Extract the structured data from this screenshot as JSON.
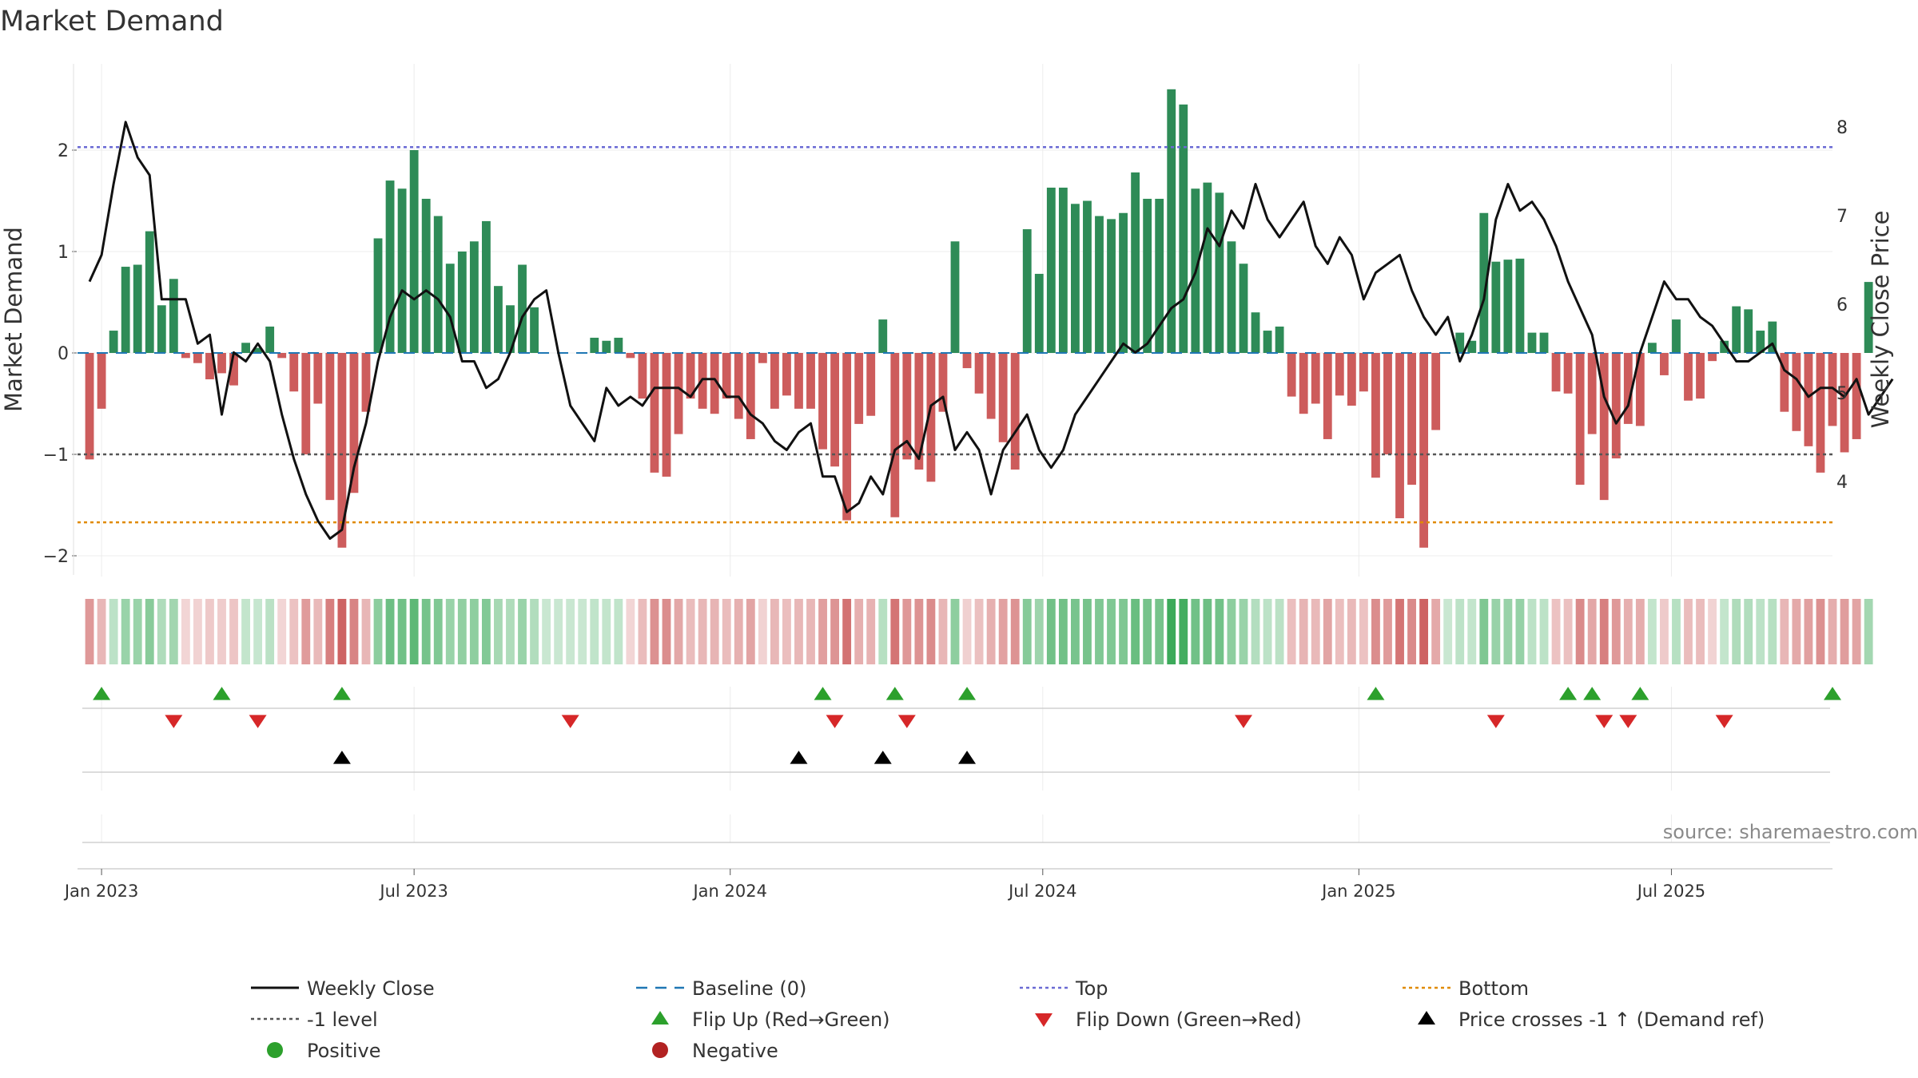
{
  "chart_data": {
    "type": "bar",
    "title": "Market Demand",
    "ylabel": "Market Demand",
    "y2label": "Weekly Close Price",
    "ylim": [
      -2.2,
      2.75
    ],
    "y2lim": [
      3.2,
      8.7
    ],
    "yticks": [
      "−2",
      "−1",
      "0",
      "1",
      "2"
    ],
    "yticks_values": [
      -2,
      -1,
      0,
      1,
      2
    ],
    "y2ticks": [
      "4",
      "5",
      "6",
      "7",
      "8"
    ],
    "y2ticks_values": [
      4,
      5,
      6,
      7,
      8
    ],
    "x_start_week": -1,
    "x_end_week": 145,
    "xticks": [
      {
        "label": "Jan 2023",
        "week": 1
      },
      {
        "label": "Jul 2023",
        "week": 27
      },
      {
        "label": "Jan 2024",
        "week": 53.3
      },
      {
        "label": "Jul 2024",
        "week": 79.3
      },
      {
        "label": "Jan 2025",
        "week": 105.6
      },
      {
        "label": "Jul 2025",
        "week": 131.6
      }
    ],
    "reference_lines": {
      "top": 2.03,
      "minus_one": -1.0,
      "bottom": -1.67,
      "baseline": 0
    },
    "demand": [
      -1.05,
      -0.55,
      0.22,
      0.85,
      0.87,
      1.2,
      0.47,
      0.73,
      -0.05,
      -0.1,
      -0.26,
      -0.2,
      -0.32,
      0.1,
      0.05,
      0.26,
      -0.05,
      -0.38,
      -1.0,
      -0.5,
      -1.45,
      -1.92,
      -1.38,
      -0.58,
      1.13,
      1.7,
      1.62,
      2.0,
      1.52,
      1.35,
      0.88,
      1.0,
      1.1,
      1.3,
      0.66,
      0.47,
      0.87,
      0.45,
      0.0,
      0.0,
      0.0,
      0.0,
      0.15,
      0.12,
      0.15,
      -0.05,
      -0.45,
      -1.18,
      -1.22,
      -0.8,
      -0.45,
      -0.55,
      -0.6,
      -0.45,
      -0.65,
      -0.85,
      -0.1,
      -0.55,
      -0.42,
      -0.55,
      -0.55,
      -0.95,
      -1.12,
      -1.65,
      -0.7,
      -0.62,
      0.33,
      -1.62,
      -1.05,
      -1.15,
      -1.27,
      -0.58,
      1.1,
      -0.15,
      -0.4,
      -0.65,
      -0.88,
      -1.15,
      1.22,
      0.78,
      1.63,
      1.63,
      1.47,
      1.5,
      1.35,
      1.32,
      1.38,
      1.78,
      1.52,
      1.52,
      2.6,
      2.45,
      1.62,
      1.68,
      1.58,
      1.1,
      0.88,
      0.4,
      0.22,
      0.26,
      -0.43,
      -0.6,
      -0.5,
      -0.85,
      -0.42,
      -0.52,
      -0.38,
      -1.23,
      -1.0,
      -1.63,
      -1.3,
      -1.92,
      -0.76,
      0.0,
      0.2,
      0.12,
      1.38,
      0.9,
      0.92,
      0.93,
      0.2,
      0.2,
      -0.38,
      -0.4,
      -1.3,
      -0.8,
      -1.45,
      -1.04,
      -0.7,
      -0.72,
      0.1,
      -0.22,
      0.33,
      -0.47,
      -0.45,
      -0.08,
      0.12,
      0.46,
      0.43,
      0.22,
      0.31,
      -0.58,
      -0.77,
      -0.92,
      -1.18,
      -0.72,
      -0.98,
      -0.85,
      0.7
    ],
    "weekly_close": [
      6.4,
      6.7,
      7.5,
      8.2,
      7.8,
      7.6,
      6.2,
      6.2,
      6.2,
      5.7,
      5.8,
      4.9,
      5.6,
      5.5,
      5.7,
      5.5,
      4.9,
      4.4,
      4.0,
      3.7,
      3.5,
      3.6,
      4.3,
      4.8,
      5.5,
      6.0,
      6.3,
      6.2,
      6.3,
      6.2,
      6.0,
      5.5,
      5.5,
      5.2,
      5.3,
      5.6,
      6.0,
      6.2,
      6.3,
      5.6,
      5.0,
      4.8,
      4.6,
      5.2,
      5.0,
      5.1,
      5.0,
      5.2,
      5.2,
      5.2,
      5.1,
      5.3,
      5.3,
      5.1,
      5.1,
      4.9,
      4.8,
      4.6,
      4.5,
      4.7,
      4.8,
      4.2,
      4.2,
      3.8,
      3.9,
      4.2,
      4.0,
      4.5,
      4.6,
      4.4,
      5.0,
      5.1,
      4.5,
      4.7,
      4.5,
      4.0,
      4.5,
      4.7,
      4.9,
      4.5,
      4.3,
      4.5,
      4.9,
      5.1,
      5.3,
      5.5,
      5.7,
      5.6,
      5.7,
      5.9,
      6.1,
      6.2,
      6.5,
      7.0,
      6.8,
      7.2,
      7.0,
      7.5,
      7.1,
      6.9,
      7.1,
      7.3,
      6.8,
      6.6,
      6.9,
      6.7,
      6.2,
      6.5,
      6.6,
      6.7,
      6.3,
      6.0,
      5.8,
      6.0,
      5.5,
      5.8,
      6.2,
      7.1,
      7.5,
      7.2,
      7.3,
      7.1,
      6.8,
      6.4,
      6.1,
      5.8,
      5.1,
      4.8,
      5.0,
      5.6,
      6.0,
      6.4,
      6.2,
      6.2,
      6.0,
      5.9,
      5.7,
      5.5,
      5.5,
      5.6,
      5.7,
      5.4,
      5.3,
      5.1,
      5.2,
      5.2,
      5.1,
      5.3,
      4.9,
      5.1,
      5.3
    ],
    "flip_up_weeks": [
      1,
      11,
      21,
      61,
      67,
      73,
      107,
      123,
      125,
      129,
      145
    ],
    "flip_down_weeks": [
      7,
      14,
      40,
      62,
      68,
      96,
      117,
      126,
      128,
      136
    ],
    "cross_weeks": [
      21,
      59,
      66,
      73
    ],
    "legend": [
      {
        "label": "Weekly Close",
        "kind": "line-solid",
        "color": "#111111"
      },
      {
        "label": "Baseline (0)",
        "kind": "line-dash",
        "color": "#1f77b4"
      },
      {
        "label": "Top",
        "kind": "line-dot",
        "color": "#6a6ad4"
      },
      {
        "label": "Bottom",
        "kind": "line-dot",
        "color": "#e08a00"
      },
      {
        "label": "-1 level",
        "kind": "line-dot",
        "color": "#555555"
      },
      {
        "label": "Flip Up (Red→Green)",
        "kind": "tri-up",
        "color": "#2ca02c"
      },
      {
        "label": "Flip Down (Green→Red)",
        "kind": "tri-down",
        "color": "#d62728"
      },
      {
        "label": "Price crosses -1 ↑ (Demand ref)",
        "kind": "tri-up",
        "color": "#000000"
      },
      {
        "label": "Positive",
        "kind": "dot",
        "color": "#2ca02c"
      },
      {
        "label": "Negative",
        "kind": "dot",
        "color": "#b22222"
      }
    ],
    "source": "source: sharemaestro.com"
  },
  "colors": {
    "positive_bar": "#2e8b57",
    "negative_bar": "#cd5c5c",
    "line": "#111111",
    "top_line": "#6a6ad4",
    "bottom_line": "#e08a00",
    "minus_one_line": "#555555",
    "baseline": "#1f77b4",
    "flip_up": "#2ca02c",
    "flip_down": "#d62728",
    "cross": "#000000"
  }
}
